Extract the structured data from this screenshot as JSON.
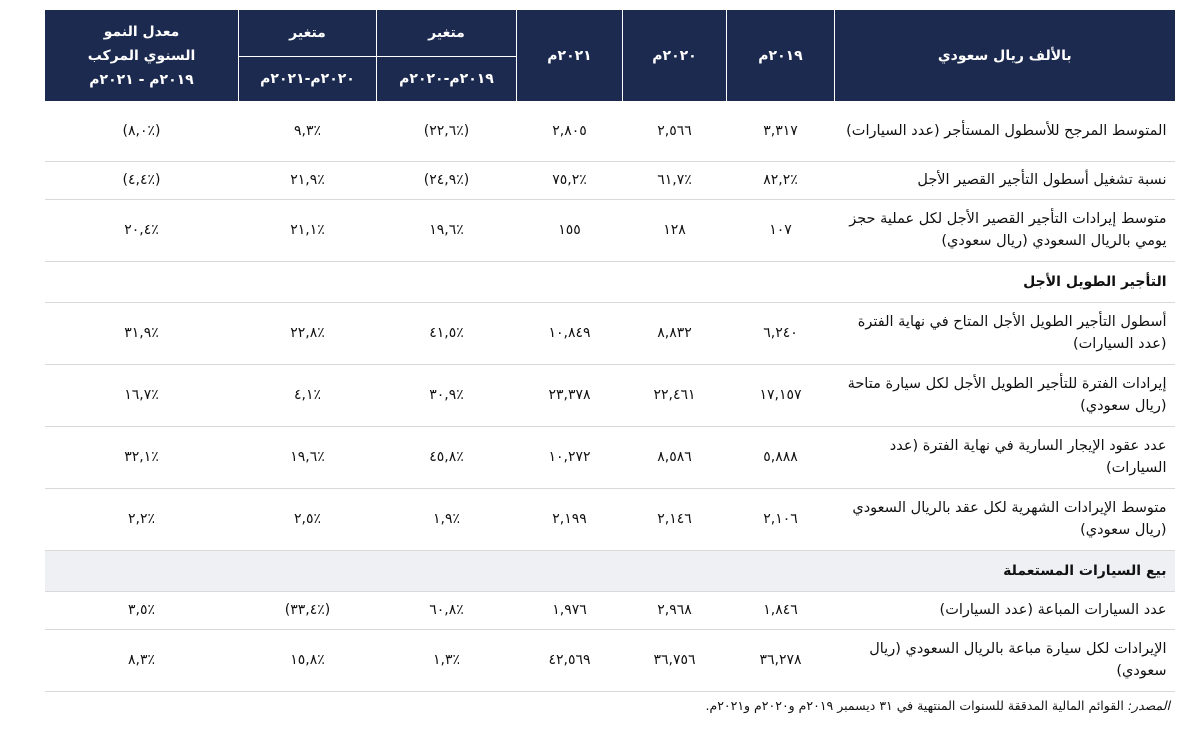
{
  "header": {
    "label_col": "بالألف ريال سعودي",
    "y2019": "٢٠١٩م",
    "y2020": "٢٠٢٠م",
    "y2021": "٢٠٢١م",
    "change1_top": "متغير",
    "change1_bottom": "٢٠١٩م-٢٠٢٠م",
    "change2_top": "متغير",
    "change2_bottom": "٢٠٢٠م-٢٠٢١م",
    "cagr_line1": "معدل النمو",
    "cagr_line2": "السنوي المركب",
    "cagr_line3": "٢٠١٩م - ٢٠٢١م"
  },
  "rows_short": [
    {
      "label": "المتوسط المرجح للأسطول المستأجر (عدد السيارات)",
      "v2019": "٣,٣١٧",
      "v2020": "٢,٥٦٦",
      "v2021": "٢,٨٠٥",
      "c1": "(٪٢٢,٦)",
      "c2": "٪٩,٣",
      "cagr": "(٪٨,٠)"
    },
    {
      "label": "نسبة تشغيل أسطول التأجير القصير الأجل",
      "v2019": "٪٨٢,٢",
      "v2020": "٪٦١,٧",
      "v2021": "٪٧٥,٢",
      "c1": "(٪٢٤,٩)",
      "c2": "٪٢١,٩",
      "cagr": "(٪٤,٤)"
    },
    {
      "label": "متوسط إيرادات التأجير القصير الأجل لكل عملية حجز يومي بالريال السعودي (ريال سعودي)",
      "v2019": "١٠٧",
      "v2020": "١٢٨",
      "v2021": "١٥٥",
      "c1": "٪١٩,٦",
      "c2": "٪٢١,١",
      "cagr": "٪٢٠,٤"
    }
  ],
  "section_long": "التأجير الطويل الأجل",
  "rows_long": [
    {
      "label": "أسطول التأجير الطويل الأجل المتاح في نهاية الفترة (عدد السيارات)",
      "v2019": "٦,٢٤٠",
      "v2020": "٨,٨٣٢",
      "v2021": "١٠,٨٤٩",
      "c1": "٪٤١,٥",
      "c2": "٪٢٢,٨",
      "cagr": "٪٣١,٩"
    },
    {
      "label": "إيرادات الفترة للتأجير الطويل الأجل لكل سيارة متاحة (ريال سعودي)",
      "v2019": "١٧,١٥٧",
      "v2020": "٢٢,٤٦١",
      "v2021": "٢٣,٣٧٨",
      "c1": "٪٣٠,٩",
      "c2": "٪٤,١",
      "cagr": "٪١٦,٧"
    },
    {
      "label": "عدد عقود الإيجار السارية في نهاية الفترة (عدد السيارات)",
      "v2019": "٥,٨٨٨",
      "v2020": "٨,٥٨٦",
      "v2021": "١٠,٢٧٢",
      "c1": "٪٤٥,٨",
      "c2": "٪١٩,٦",
      "cagr": "٪٣٢,١"
    },
    {
      "label": "متوسط الإيرادات الشهرية لكل عقد بالريال السعودي (ريال سعودي)",
      "v2019": "٢,١٠٦",
      "v2020": "٢,١٤٦",
      "v2021": "٢,١٩٩",
      "c1": "٪١,٩",
      "c2": "٪٢,٥",
      "cagr": "٪٢,٢"
    }
  ],
  "section_used": "بيع السيارات المستعملة",
  "rows_used": [
    {
      "label": "عدد السيارات المباعة (عدد السيارات)",
      "v2019": "١,٨٤٦",
      "v2020": "٢,٩٦٨",
      "v2021": "١,٩٧٦",
      "c1": "٪٦٠,٨",
      "c2": "(٪٣٣,٤)",
      "cagr": "٪٣,٥"
    },
    {
      "label": "الإيرادات لكل سيارة مباعة بالريال السعودي (ريال سعودي)",
      "v2019": "٣٦,٢٧٨",
      "v2020": "٣٦,٧٥٦",
      "v2021": "٤٢,٥٦٩",
      "c1": "٪١,٣",
      "c2": "٪١٥,٨",
      "cagr": "٪٨,٣"
    }
  ],
  "source": {
    "prefix": "المصدر:",
    "text": "القوائم المالية المدققة للسنوات المنتهية في ٣١ ديسمبر ٢٠١٩م و٢٠٢٠م و٢٠٢١م."
  }
}
